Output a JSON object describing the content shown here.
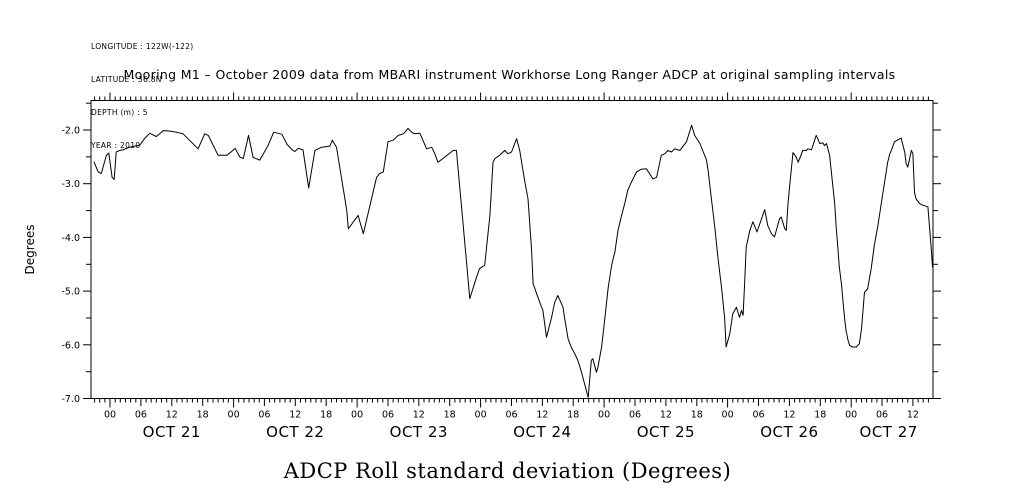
{
  "meta": {
    "longitude": "LONGITUDE : 122W(-122)",
    "latitude": "LATITUDE : 36.8N",
    "depth": "DEPTH (m) : 5",
    "year": "YEAR : 2010"
  },
  "title": "Mooring M1 – October 2009 data from MBARI instrument Workhorse Long Ranger ADCP at original sampling intervals",
  "caption": "ADCP Roll standard deviation (Degrees)",
  "chart_data": {
    "type": "line",
    "title": "Mooring M1 – October 2009 data from MBARI instrument Workhorse Long Ranger ADCP at original sampling intervals",
    "caption": "ADCP Roll standard deviation (Degrees)",
    "ylabel": "Degrees",
    "xlabel": "",
    "grid": false,
    "line_color": "#000000",
    "background": "#ffffff",
    "x_unit": "hours since OCT 21 00:00",
    "xlim": [
      -3.7,
      159.9
    ],
    "ylim": [
      -7.0,
      -1.45
    ],
    "y_ticks": [
      {
        "v": -2.0,
        "label": "-2.0"
      },
      {
        "v": -3.0,
        "label": "-3.0"
      },
      {
        "v": -4.0,
        "label": "-4.0"
      },
      {
        "v": -5.0,
        "label": "-5.0"
      },
      {
        "v": -6.0,
        "label": "-6.0"
      },
      {
        "v": -7.0,
        "label": "-7.0"
      }
    ],
    "y_minor_ticks": [
      -1.5,
      -2.5,
      -3.5,
      -4.5,
      -5.5,
      -6.5
    ],
    "x_minor_step_hours": 1,
    "x_hour_ticks": [
      {
        "t": 0,
        "label": "00"
      },
      {
        "t": 6,
        "label": "06"
      },
      {
        "t": 12,
        "label": "12"
      },
      {
        "t": 18,
        "label": "18"
      },
      {
        "t": 24,
        "label": "00"
      },
      {
        "t": 30,
        "label": "06"
      },
      {
        "t": 36,
        "label": "12"
      },
      {
        "t": 42,
        "label": "18"
      },
      {
        "t": 48,
        "label": "00"
      },
      {
        "t": 54,
        "label": "06"
      },
      {
        "t": 60,
        "label": "12"
      },
      {
        "t": 66,
        "label": "18"
      },
      {
        "t": 72,
        "label": "00"
      },
      {
        "t": 78,
        "label": "06"
      },
      {
        "t": 84,
        "label": "12"
      },
      {
        "t": 90,
        "label": "18"
      },
      {
        "t": 96,
        "label": "00"
      },
      {
        "t": 102,
        "label": "06"
      },
      {
        "t": 108,
        "label": "12"
      },
      {
        "t": 114,
        "label": "18"
      },
      {
        "t": 120,
        "label": "00"
      },
      {
        "t": 126,
        "label": "06"
      },
      {
        "t": 132,
        "label": "12"
      },
      {
        "t": 138,
        "label": "18"
      },
      {
        "t": 144,
        "label": "00"
      },
      {
        "t": 150,
        "label": "06"
      },
      {
        "t": 156,
        "label": "12"
      }
    ],
    "day_labels": [
      {
        "t": 12,
        "label": "OCT 21"
      },
      {
        "t": 36,
        "label": "OCT 22"
      },
      {
        "t": 60,
        "label": "OCT 23"
      },
      {
        "t": 84,
        "label": "OCT 24"
      },
      {
        "t": 108,
        "label": "OCT 25"
      },
      {
        "t": 132,
        "label": "OCT 26"
      },
      {
        "t": 151.3,
        "label": "OCT 27"
      }
    ],
    "series": [
      {
        "name": "ADCP Roll standard deviation",
        "points": [
          [
            -3.1,
            -2.6
          ],
          [
            -2.3,
            -2.78
          ],
          [
            -1.7,
            -2.81
          ],
          [
            -0.7,
            -2.47
          ],
          [
            -0.25,
            -2.43
          ],
          [
            0.4,
            -2.88
          ],
          [
            0.8,
            -2.92
          ],
          [
            1.2,
            -2.41
          ],
          [
            1.9,
            -2.38
          ],
          [
            2.5,
            -2.37
          ],
          [
            3.8,
            -2.32
          ],
          [
            4.8,
            -2.3
          ],
          [
            5.8,
            -2.28
          ],
          [
            6.7,
            -2.16
          ],
          [
            7.7,
            -2.06
          ],
          [
            9.0,
            -2.12
          ],
          [
            10.0,
            -2.04
          ],
          [
            10.3,
            -2.01
          ],
          [
            11.7,
            -2.02
          ],
          [
            12.9,
            -2.04
          ],
          [
            14.2,
            -2.07
          ],
          [
            17.1,
            -2.35
          ],
          [
            18.4,
            -2.07
          ],
          [
            19.1,
            -2.1
          ],
          [
            21.0,
            -2.47
          ],
          [
            22.7,
            -2.47
          ],
          [
            23.9,
            -2.38
          ],
          [
            24.3,
            -2.34
          ],
          [
            25.2,
            -2.5
          ],
          [
            25.9,
            -2.53
          ],
          [
            26.9,
            -2.1
          ],
          [
            27.8,
            -2.51
          ],
          [
            29.1,
            -2.56
          ],
          [
            30.7,
            -2.29
          ],
          [
            31.8,
            -2.04
          ],
          [
            33.4,
            -2.08
          ],
          [
            34.4,
            -2.27
          ],
          [
            35.3,
            -2.36
          ],
          [
            35.9,
            -2.4
          ],
          [
            36.6,
            -2.34
          ],
          [
            37.5,
            -2.37
          ],
          [
            38.6,
            -3.08
          ],
          [
            39.8,
            -2.38
          ],
          [
            41.1,
            -2.32
          ],
          [
            42.7,
            -2.3
          ],
          [
            43.2,
            -2.19
          ],
          [
            44.0,
            -2.32
          ],
          [
            46.0,
            -3.5
          ],
          [
            46.3,
            -3.84
          ],
          [
            48.2,
            -3.59
          ],
          [
            49.2,
            -3.93
          ],
          [
            51.8,
            -2.88
          ],
          [
            52.4,
            -2.81
          ],
          [
            53.1,
            -2.78
          ],
          [
            54.0,
            -2.22
          ],
          [
            55.0,
            -2.19
          ],
          [
            56.0,
            -2.1
          ],
          [
            57.0,
            -2.07
          ],
          [
            57.9,
            -1.97
          ],
          [
            58.6,
            -2.04
          ],
          [
            59.2,
            -2.07
          ],
          [
            60.2,
            -2.06
          ],
          [
            61.5,
            -2.35
          ],
          [
            62.5,
            -2.32
          ],
          [
            63.1,
            -2.44
          ],
          [
            63.7,
            -2.6
          ],
          [
            64.7,
            -2.53
          ],
          [
            66.7,
            -2.38
          ],
          [
            67.3,
            -2.38
          ],
          [
            68.3,
            -3.44
          ],
          [
            69.9,
            -5.14
          ],
          [
            71.2,
            -4.74
          ],
          [
            71.8,
            -4.58
          ],
          [
            72.8,
            -4.52
          ],
          [
            73.8,
            -3.59
          ],
          [
            74.4,
            -2.6
          ],
          [
            74.8,
            -2.53
          ],
          [
            75.7,
            -2.47
          ],
          [
            76.7,
            -2.38
          ],
          [
            77.3,
            -2.44
          ],
          [
            78.0,
            -2.41
          ],
          [
            79.0,
            -2.16
          ],
          [
            79.6,
            -2.38
          ],
          [
            80.6,
            -2.97
          ],
          [
            81.2,
            -3.28
          ],
          [
            81.9,
            -4.24
          ],
          [
            82.2,
            -4.86
          ],
          [
            82.9,
            -5.05
          ],
          [
            83.5,
            -5.21
          ],
          [
            84.1,
            -5.36
          ],
          [
            84.8,
            -5.86
          ],
          [
            85.8,
            -5.49
          ],
          [
            86.4,
            -5.21
          ],
          [
            87.0,
            -5.08
          ],
          [
            88.0,
            -5.3
          ],
          [
            88.3,
            -5.49
          ],
          [
            89.0,
            -5.89
          ],
          [
            89.6,
            -6.04
          ],
          [
            90.3,
            -6.17
          ],
          [
            90.9,
            -6.29
          ],
          [
            91.6,
            -6.51
          ],
          [
            92.2,
            -6.73
          ],
          [
            92.9,
            -6.98
          ],
          [
            93.5,
            -6.29
          ],
          [
            93.8,
            -6.26
          ],
          [
            94.5,
            -6.51
          ],
          [
            94.8,
            -6.42
          ],
          [
            95.5,
            -6.04
          ],
          [
            96.1,
            -5.55
          ],
          [
            96.8,
            -4.93
          ],
          [
            97.5,
            -4.5
          ],
          [
            98.1,
            -4.27
          ],
          [
            98.7,
            -3.87
          ],
          [
            99.4,
            -3.59
          ],
          [
            100.0,
            -3.37
          ],
          [
            100.6,
            -3.12
          ],
          [
            101.3,
            -2.97
          ],
          [
            102.3,
            -2.78
          ],
          [
            103.2,
            -2.73
          ],
          [
            104.2,
            -2.72
          ],
          [
            105.5,
            -2.91
          ],
          [
            106.2,
            -2.88
          ],
          [
            107.1,
            -2.47
          ],
          [
            107.8,
            -2.44
          ],
          [
            108.4,
            -2.38
          ],
          [
            109.1,
            -2.41
          ],
          [
            109.7,
            -2.35
          ],
          [
            110.7,
            -2.38
          ],
          [
            112.0,
            -2.22
          ],
          [
            113.0,
            -1.91
          ],
          [
            113.6,
            -2.1
          ],
          [
            114.6,
            -2.25
          ],
          [
            115.9,
            -2.56
          ],
          [
            116.2,
            -2.75
          ],
          [
            116.8,
            -3.25
          ],
          [
            117.5,
            -3.81
          ],
          [
            118.1,
            -4.37
          ],
          [
            118.8,
            -4.93
          ],
          [
            119.4,
            -5.49
          ],
          [
            119.7,
            -6.04
          ],
          [
            120.4,
            -5.8
          ],
          [
            121.0,
            -5.42
          ],
          [
            121.7,
            -5.3
          ],
          [
            122.3,
            -5.49
          ],
          [
            122.7,
            -5.36
          ],
          [
            123.0,
            -5.45
          ],
          [
            123.3,
            -4.86
          ],
          [
            123.6,
            -4.18
          ],
          [
            124.3,
            -3.87
          ],
          [
            124.9,
            -3.71
          ],
          [
            125.7,
            -3.9
          ],
          [
            127.2,
            -3.48
          ],
          [
            127.8,
            -3.78
          ],
          [
            128.5,
            -3.93
          ],
          [
            129.1,
            -3.99
          ],
          [
            130.1,
            -3.65
          ],
          [
            130.4,
            -3.62
          ],
          [
            131.1,
            -3.84
          ],
          [
            131.4,
            -3.87
          ],
          [
            131.7,
            -3.4
          ],
          [
            132.0,
            -3.09
          ],
          [
            132.7,
            -2.42
          ],
          [
            133.3,
            -2.5
          ],
          [
            133.7,
            -2.6
          ],
          [
            134.0,
            -2.53
          ],
          [
            134.6,
            -2.38
          ],
          [
            135.3,
            -2.38
          ],
          [
            135.6,
            -2.35
          ],
          [
            136.3,
            -2.37
          ],
          [
            136.9,
            -2.19
          ],
          [
            137.2,
            -2.1
          ],
          [
            137.5,
            -2.16
          ],
          [
            137.9,
            -2.25
          ],
          [
            138.5,
            -2.24
          ],
          [
            138.8,
            -2.29
          ],
          [
            139.2,
            -2.25
          ],
          [
            139.8,
            -2.47
          ],
          [
            140.4,
            -3.0
          ],
          [
            140.8,
            -3.37
          ],
          [
            141.1,
            -3.81
          ],
          [
            141.4,
            -4.18
          ],
          [
            141.7,
            -4.55
          ],
          [
            142.1,
            -4.86
          ],
          [
            142.4,
            -5.17
          ],
          [
            142.7,
            -5.49
          ],
          [
            143.0,
            -5.73
          ],
          [
            143.4,
            -5.92
          ],
          [
            143.7,
            -6.01
          ],
          [
            144.3,
            -6.04
          ],
          [
            145.0,
            -6.04
          ],
          [
            145.6,
            -5.98
          ],
          [
            146.0,
            -5.7
          ],
          [
            146.6,
            -5.02
          ],
          [
            146.9,
            -4.99
          ],
          [
            147.2,
            -4.96
          ],
          [
            147.9,
            -4.58
          ],
          [
            148.5,
            -4.15
          ],
          [
            149.2,
            -3.78
          ],
          [
            149.8,
            -3.4
          ],
          [
            150.5,
            -2.97
          ],
          [
            151.1,
            -2.6
          ],
          [
            151.5,
            -2.44
          ],
          [
            151.8,
            -2.38
          ],
          [
            152.4,
            -2.22
          ],
          [
            153.7,
            -2.15
          ],
          [
            154.4,
            -2.41
          ],
          [
            154.7,
            -2.63
          ],
          [
            155.0,
            -2.69
          ],
          [
            155.7,
            -2.38
          ],
          [
            156.0,
            -2.44
          ],
          [
            156.3,
            -3.16
          ],
          [
            156.6,
            -3.28
          ],
          [
            157.3,
            -3.37
          ],
          [
            157.9,
            -3.4
          ],
          [
            158.9,
            -3.43
          ],
          [
            159.2,
            -3.78
          ],
          [
            159.6,
            -4.27
          ],
          [
            159.8,
            -4.55
          ]
        ]
      }
    ]
  }
}
